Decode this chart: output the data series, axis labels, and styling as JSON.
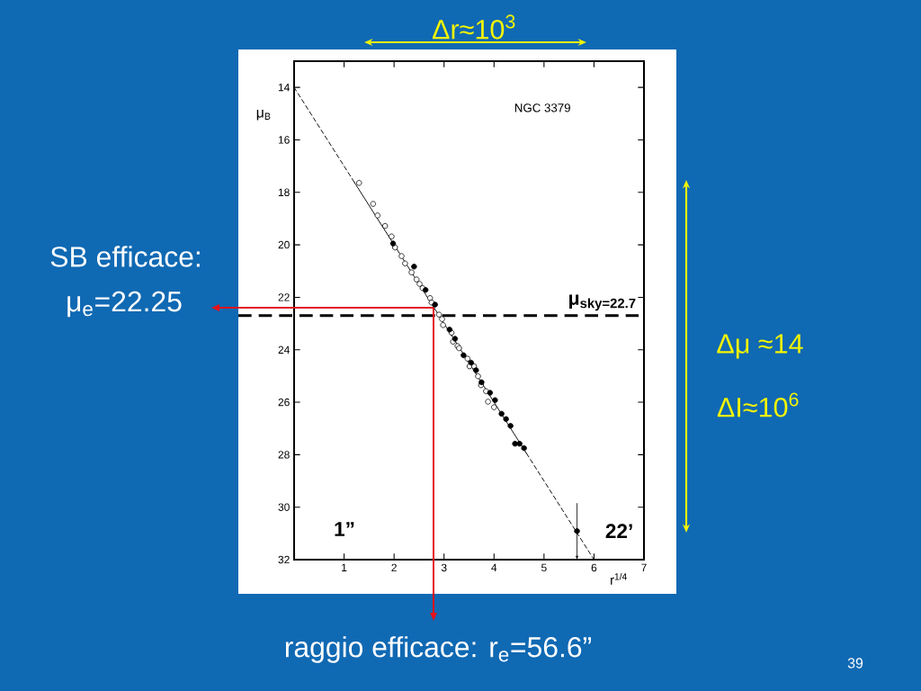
{
  "chart_data": {
    "type": "scatter",
    "title": "NGC 3379",
    "xlabel": "r$^{1/4}$",
    "ylabel": "μ$_{B}$",
    "xlim": [
      0,
      7
    ],
    "ylim": [
      32,
      13
    ],
    "xticks": [
      1,
      2,
      3,
      4,
      5,
      6,
      7
    ],
    "yticks": [
      14,
      16,
      18,
      20,
      22,
      24,
      26,
      28,
      30,
      32
    ],
    "marker": "circle",
    "series": [
      {
        "color": "#000000",
        "x": [
          1.3,
          1.58,
          1.67,
          1.82,
          1.95,
          2.02,
          2.15,
          2.22,
          2.35,
          2.45,
          2.51,
          2.57,
          2.72,
          2.75,
          2.9,
          2.96,
          2.98,
          3.15,
          3.18,
          3.27,
          3.3,
          3.47,
          3.51,
          3.6,
          3.68,
          3.74,
          3.84,
          3.88,
          4.0
        ],
        "values": [
          17.64,
          18.44,
          18.88,
          19.28,
          19.68,
          20.1,
          20.43,
          20.71,
          21.05,
          21.32,
          21.49,
          21.65,
          22.03,
          22.2,
          22.66,
          22.83,
          23.06,
          23.35,
          23.69,
          23.86,
          23.94,
          24.34,
          24.63,
          24.63,
          25.01,
          25.35,
          25.58,
          25.98,
          26.19
        ]
      },
      {
        "color": "#000000",
        "x": [
          1.98,
          2.4,
          2.63,
          2.82,
          3.11,
          3.22,
          3.39,
          3.54,
          3.64,
          3.75,
          3.92,
          4.02,
          4.15,
          4.24,
          4.33,
          4.42,
          4.51,
          4.6,
          5.66
        ],
        "values": [
          19.95,
          20.83,
          21.72,
          22.28,
          23.23,
          23.58,
          24.21,
          24.49,
          24.78,
          25.24,
          25.64,
          25.92,
          26.44,
          26.64,
          26.9,
          27.58,
          27.58,
          27.75,
          30.91
        ]
      },
      {
        "type": "line",
        "color": "#000000",
        "marker": "none",
        "line_style": "dashed",
        "x": [
          0,
          1.2
        ],
        "values": [
          14,
          17.6
        ]
      },
      {
        "type": "line",
        "color": "#000000",
        "marker": "none",
        "line_style": "solid",
        "x": [
          1.2,
          4.65
        ],
        "values": [
          17.6,
          27.95
        ]
      },
      {
        "type": "line",
        "color": "#000000",
        "marker": "none",
        "line_style": "dashed",
        "x": [
          4.65,
          6
        ],
        "values": [
          27.95,
          32
        ]
      }
    ],
    "ref_lines": [
      {
        "axis": "y",
        "value": 22.7,
        "label": "μ$_{sky=22.7}$",
        "color": "#000000",
        "line_style": "dashed"
      }
    ],
    "annotations": [
      "SB efficace:",
      "μ$_{e}$=22.25",
      "raggio efficace: r$_{e}$=56.6”",
      "Δr≈10$^{3}$",
      "Δμ ≈14",
      "ΔI≈10$^{6}$",
      "1”",
      {
        "text": "22’",
        "x": 5.66,
        "y": 30.91
      },
      "39"
    ]
  }
}
